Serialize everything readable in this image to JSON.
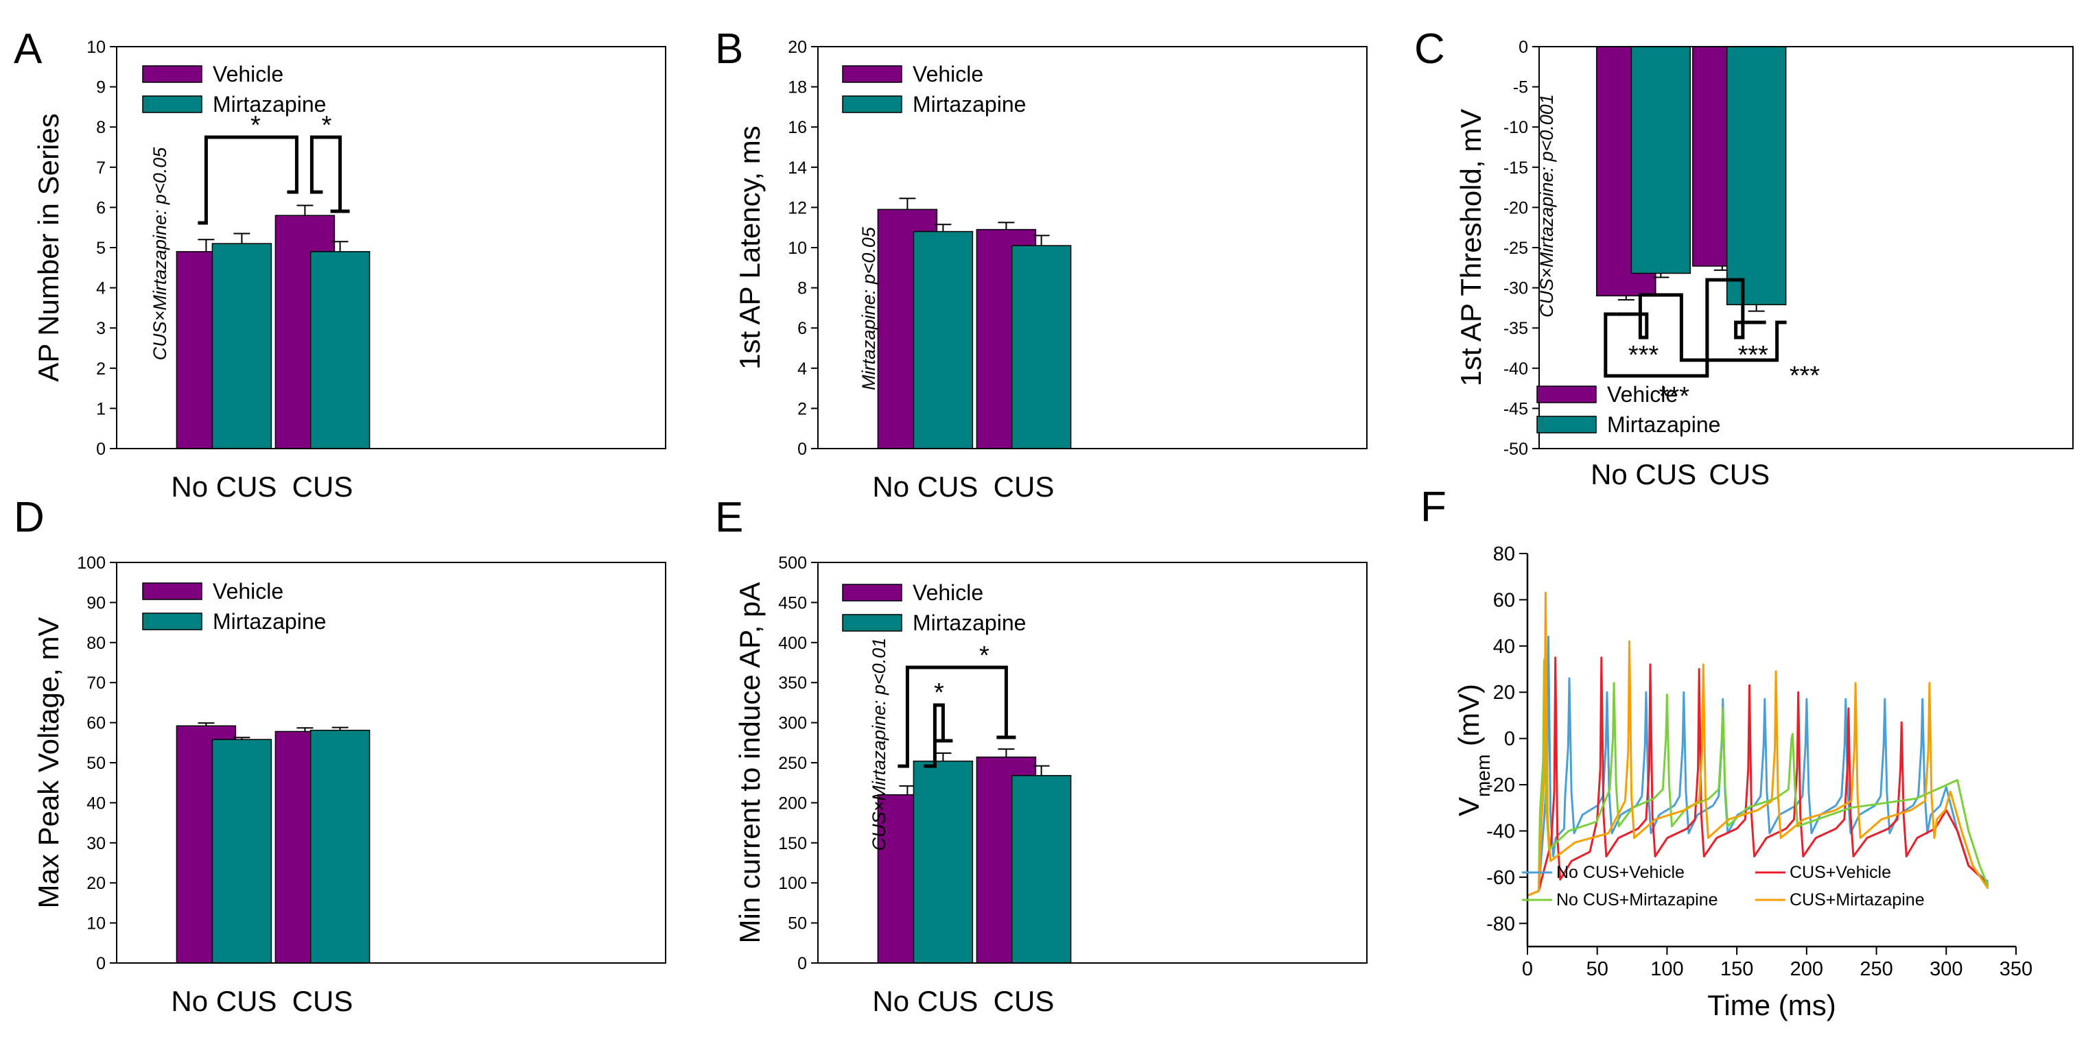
{
  "colors": {
    "vehicle": "#7f007f",
    "mirtazapine": "#008080",
    "trace_nocus_vehicle": "#4a9fd6",
    "trace_cus_vehicle": "#e8202b",
    "trace_nocus_mirt": "#7ccf3c",
    "trace_cus_mirt": "#f5a000"
  },
  "chart_data": [
    {
      "id": "A",
      "type": "bar",
      "panel_letter": "A",
      "ylabel": "AP Number in Series",
      "ylim": [
        0,
        10
      ],
      "yticks": [
        "0",
        "1",
        "2",
        "3",
        "4",
        "5",
        "6",
        "7",
        "8",
        "9",
        "10"
      ],
      "categories": [
        "No CUS",
        "CUS"
      ],
      "series": [
        {
          "name": "Vehicle",
          "values": [
            4.9,
            5.8
          ],
          "errors": [
            0.3,
            0.25
          ]
        },
        {
          "name": "Mirtazapine",
          "values": [
            5.1,
            4.9
          ],
          "errors": [
            0.25,
            0.25
          ]
        }
      ],
      "annotation": "CUS×Mirtazapine: p<0.05",
      "significance": [
        {
          "label": "*",
          "between": [
            "No CUS Vehicle",
            "CUS Vehicle"
          ]
        },
        {
          "label": "*",
          "between": [
            "CUS Vehicle",
            "CUS Mirtazapine"
          ]
        }
      ]
    },
    {
      "id": "B",
      "type": "bar",
      "panel_letter": "B",
      "ylabel": "1st AP Latency, ms",
      "ylim": [
        0,
        20
      ],
      "yticks": [
        "0",
        "2",
        "4",
        "6",
        "8",
        "10",
        "12",
        "14",
        "16",
        "18",
        "20"
      ],
      "categories": [
        "No CUS",
        "CUS"
      ],
      "series": [
        {
          "name": "Vehicle",
          "values": [
            11.9,
            10.9
          ],
          "errors": [
            0.55,
            0.35
          ]
        },
        {
          "name": "Mirtazapine",
          "values": [
            10.8,
            10.1
          ],
          "errors": [
            0.35,
            0.5
          ]
        }
      ],
      "annotation": "Mirtazapine: p<0.05",
      "significance": []
    },
    {
      "id": "C",
      "type": "bar",
      "panel_letter": "C",
      "ylabel": "1st AP Threshold, mV",
      "ylim": [
        -50,
        0
      ],
      "yticks": [
        "0",
        "-5",
        "-10",
        "-15",
        "-20",
        "-25",
        "-30",
        "-35",
        "-40",
        "-45",
        "-50"
      ],
      "categories": [
        "No CUS",
        "CUS"
      ],
      "series": [
        {
          "name": "Vehicle",
          "values": [
            -31.0,
            -27.3
          ],
          "errors": [
            0.5,
            0.5
          ]
        },
        {
          "name": "Mirtazapine",
          "values": [
            -28.2,
            -32.1
          ],
          "errors": [
            0.5,
            0.8
          ]
        }
      ],
      "annotation": "CUS×Mirtazapine: p<0.001",
      "significance": [
        {
          "label": "***",
          "between": [
            "No CUS Vehicle",
            "No CUS Mirtazapine"
          ]
        },
        {
          "label": "***",
          "between": [
            "CUS Vehicle",
            "CUS Mirtazapine"
          ]
        },
        {
          "label": "***",
          "between": [
            "No CUS Mirtazapine",
            "CUS Mirtazapine"
          ]
        },
        {
          "label": "***",
          "between": [
            "No CUS Vehicle",
            "CUS Vehicle"
          ]
        }
      ]
    },
    {
      "id": "D",
      "type": "bar",
      "panel_letter": "D",
      "ylabel": "Max Peak Voltage, mV",
      "ylim": [
        0,
        100
      ],
      "yticks": [
        "0",
        "10",
        "20",
        "30",
        "40",
        "50",
        "60",
        "70",
        "80",
        "90",
        "100"
      ],
      "categories": [
        "No CUS",
        "CUS"
      ],
      "series": [
        {
          "name": "Vehicle",
          "values": [
            59.2,
            57.8
          ],
          "errors": [
            0.7,
            0.9
          ]
        },
        {
          "name": "Mirtazapine",
          "values": [
            55.8,
            58.1
          ],
          "errors": [
            0.5,
            0.7
          ]
        }
      ],
      "annotation": "",
      "significance": []
    },
    {
      "id": "E",
      "type": "bar",
      "panel_letter": "E",
      "ylabel": "Min current to induce AP, pA",
      "ylim": [
        0,
        500
      ],
      "yticks": [
        "0",
        "50",
        "100",
        "150",
        "200",
        "250",
        "300",
        "350",
        "400",
        "450",
        "500"
      ],
      "categories": [
        "No CUS",
        "CUS"
      ],
      "series": [
        {
          "name": "Vehicle",
          "values": [
            210,
            257
          ],
          "errors": [
            11,
            10
          ]
        },
        {
          "name": "Mirtazapine",
          "values": [
            252,
            234
          ],
          "errors": [
            10,
            12
          ]
        }
      ],
      "annotation": "CUS×Mirtazapine: p<0.01",
      "significance": [
        {
          "label": "*",
          "between": [
            "No CUS Vehicle",
            "No CUS Mirtazapine"
          ]
        },
        {
          "label": "*",
          "between": [
            "No CUS Vehicle",
            "CUS Vehicle"
          ]
        }
      ]
    },
    {
      "id": "F",
      "type": "line",
      "panel_letter": "F",
      "xlabel": "Time (ms)",
      "ylabel": "V",
      "ylabel_sub": "mem",
      "ylabel_unit": " (mV)",
      "xlim": [
        0,
        350
      ],
      "ylim": [
        -90,
        80
      ],
      "xticks": [
        "0",
        "50",
        "100",
        "150",
        "200",
        "250",
        "300",
        "350"
      ],
      "yticks": [
        "-80",
        "-60",
        "-40",
        "-20",
        "0",
        "20",
        "40",
        "60",
        "80"
      ],
      "series": [
        {
          "name": "No CUS+Vehicle",
          "spikes": [
            15,
            30,
            57,
            85,
            112,
            140,
            170,
            200,
            228,
            256,
            283
          ],
          "peaks": [
            44,
            26,
            20,
            20,
            20,
            17,
            17,
            17,
            17,
            17,
            17
          ],
          "trough": -33,
          "end_time": 300
        },
        {
          "name": "CUS+Vehicle",
          "spikes": [
            20,
            53,
            88,
            123,
            159,
            194,
            230,
            268
          ],
          "peaks": [
            35,
            35,
            32,
            30,
            23,
            20,
            13,
            7
          ],
          "trough": -43,
          "end_time": 300
        },
        {
          "name": "No CUS+Mirtazapine",
          "spikes": [
            12,
            62,
            100,
            140,
            190
          ],
          "peaks": [
            34,
            24,
            19,
            13,
            2
          ],
          "trough": -30,
          "end_time": 308
        },
        {
          "name": "CUS+Mirtazapine",
          "spikes": [
            13,
            73,
            126,
            178,
            235,
            288
          ],
          "peaks": [
            63,
            42,
            32,
            29,
            24,
            24
          ],
          "trough": -35,
          "end_time": 303
        }
      ]
    }
  ],
  "legend": {
    "vehicle": "Vehicle",
    "mirtazapine": "Mirtazapine"
  }
}
